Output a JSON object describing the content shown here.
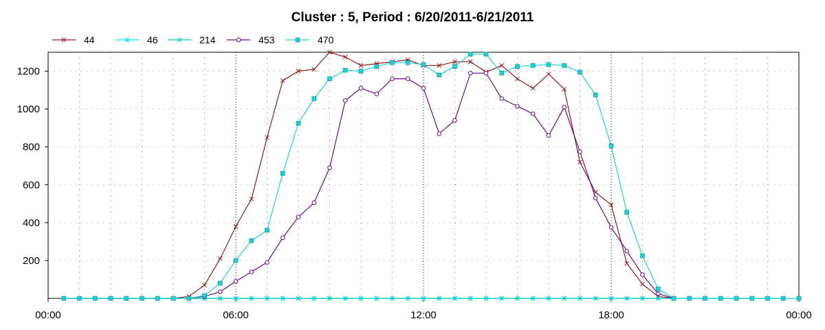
{
  "chart_data": {
    "type": "line",
    "title": "Cluster : 5, Period : 6/20/2011-6/21/2011",
    "xlabel": "",
    "ylabel": "",
    "x_unit": "hours",
    "xlim": [
      0,
      24
    ],
    "ylim": [
      0,
      1300
    ],
    "x_ticks": [
      0,
      6,
      12,
      18,
      24
    ],
    "x_tick_labels": [
      "00:00",
      "06:00",
      "12:00",
      "18:00",
      "00:00"
    ],
    "y_ticks": [
      200,
      400,
      600,
      800,
      1000,
      1200
    ],
    "grid": "dotted",
    "legend_position": "top-left",
    "series": [
      {
        "name": "44",
        "color": "#8b1a1a",
        "marker": "x",
        "x": [
          0.5,
          1.0,
          1.5,
          2.0,
          2.5,
          3.0,
          3.5,
          4.0,
          4.5,
          5.0,
          5.5,
          6.0,
          6.5,
          7.0,
          7.5,
          8.0,
          8.5,
          9.0,
          9.5,
          10.0,
          10.5,
          11.0,
          11.5,
          12.0,
          12.5,
          13.0,
          13.5,
          14.0,
          14.5,
          15.0,
          15.5,
          16.0,
          16.5,
          17.0,
          17.5,
          18.0,
          18.5,
          19.0,
          19.5,
          20.0
        ],
        "y": [
          0,
          0,
          0,
          0,
          0,
          0,
          0,
          0,
          10,
          70,
          210,
          380,
          525,
          850,
          1150,
          1200,
          1210,
          1300,
          1275,
          1230,
          1240,
          1250,
          1260,
          1230,
          1230,
          1250,
          1250,
          1195,
          1230,
          1160,
          1110,
          1185,
          1105,
          720,
          560,
          495,
          185,
          75,
          10,
          0
        ]
      },
      {
        "name": "46",
        "color": "#00e5e5",
        "marker": "star",
        "x": [
          0.5,
          1.0,
          1.5,
          2.0,
          2.5,
          3.0,
          3.5,
          4.0,
          4.5,
          5.0,
          5.5,
          6.0,
          6.5,
          7.0,
          7.5,
          8.0,
          8.5,
          9.0,
          9.5,
          10.0,
          10.5,
          11.0,
          11.5,
          12.0,
          12.5,
          13.0,
          13.5,
          14.0,
          14.5,
          15.0,
          15.5,
          16.0,
          16.5,
          17.0,
          17.5,
          18.0,
          18.5,
          19.0,
          19.5,
          20.0,
          20.5,
          21.0,
          21.5,
          22.0,
          22.5,
          23.0,
          23.5
        ],
        "y": [
          0,
          0,
          0,
          0,
          0,
          0,
          0,
          0,
          0,
          0,
          0,
          0,
          0,
          0,
          0,
          0,
          0,
          0,
          0,
          0,
          0,
          0,
          0,
          0,
          0,
          0,
          0,
          0,
          0,
          0,
          0,
          0,
          0,
          0,
          0,
          0,
          0,
          0,
          0,
          0,
          0,
          0,
          0,
          0,
          0,
          0,
          0
        ]
      },
      {
        "name": "214",
        "color": "#00c8c8",
        "marker": "x",
        "x": [
          0.5,
          1.0,
          1.5,
          2.0,
          2.5,
          3.0,
          3.5,
          4.0,
          4.5,
          5.0,
          5.5,
          6.0,
          6.5,
          7.0,
          7.5,
          8.0,
          8.5,
          9.0,
          9.5,
          10.0,
          10.5,
          11.0,
          11.5,
          12.0,
          12.5,
          13.0,
          13.5,
          14.0,
          14.5,
          15.0,
          15.5,
          16.0,
          16.5,
          17.0,
          17.5,
          18.0,
          18.5,
          19.0,
          19.5,
          20.0,
          20.5,
          21.0,
          21.5,
          22.0,
          22.5,
          23.0,
          23.5
        ],
        "y": [
          0,
          0,
          0,
          0,
          0,
          0,
          0,
          0,
          0,
          0,
          0,
          0,
          0,
          0,
          0,
          0,
          0,
          0,
          0,
          0,
          0,
          0,
          0,
          0,
          0,
          0,
          0,
          0,
          0,
          0,
          0,
          0,
          0,
          0,
          0,
          0,
          0,
          0,
          0,
          0,
          0,
          0,
          0,
          0,
          0,
          0,
          0
        ]
      },
      {
        "name": "453",
        "color": "#6a0a8a",
        "marker": "circle",
        "x": [
          4.0,
          4.5,
          5.0,
          5.5,
          6.0,
          6.5,
          7.0,
          7.5,
          8.0,
          8.5,
          9.0,
          9.5,
          10.0,
          10.5,
          11.0,
          11.5,
          12.0,
          12.5,
          13.0,
          13.5,
          14.0,
          14.5,
          15.0,
          15.5,
          16.0,
          16.5,
          17.0,
          17.5,
          18.0,
          18.5,
          19.0,
          19.5,
          20.0
        ],
        "y": [
          0,
          0,
          10,
          35,
          90,
          140,
          190,
          320,
          430,
          505,
          690,
          1045,
          1110,
          1080,
          1160,
          1160,
          1110,
          870,
          940,
          1190,
          1190,
          1055,
          1015,
          975,
          860,
          1010,
          775,
          530,
          375,
          250,
          125,
          25,
          0
        ]
      },
      {
        "name": "470",
        "color": "#20d0d8",
        "marker": "square",
        "x": [
          0.5,
          1.0,
          1.5,
          2.0,
          2.5,
          3.0,
          3.5,
          4.0,
          4.5,
          5.0,
          5.5,
          6.0,
          6.5,
          7.0,
          7.5,
          8.0,
          8.5,
          9.0,
          9.5,
          10.0,
          10.5,
          11.0,
          11.5,
          12.0,
          12.5,
          13.0,
          13.5,
          14.0,
          14.5,
          15.0,
          15.5,
          16.0,
          16.5,
          17.0,
          17.5,
          18.0,
          18.5,
          19.0,
          19.5,
          20.0,
          20.5,
          21.0,
          21.5,
          22.0,
          22.5,
          23.0,
          23.5,
          24.0
        ],
        "y": [
          0,
          0,
          0,
          0,
          0,
          0,
          0,
          0,
          0,
          15,
          80,
          200,
          305,
          360,
          660,
          925,
          1055,
          1160,
          1205,
          1200,
          1225,
          1245,
          1245,
          1235,
          1180,
          1225,
          1290,
          1290,
          1190,
          1225,
          1230,
          1235,
          1230,
          1195,
          1075,
          805,
          455,
          225,
          50,
          0,
          0,
          0,
          0,
          0,
          0,
          0,
          0,
          0
        ]
      }
    ]
  }
}
